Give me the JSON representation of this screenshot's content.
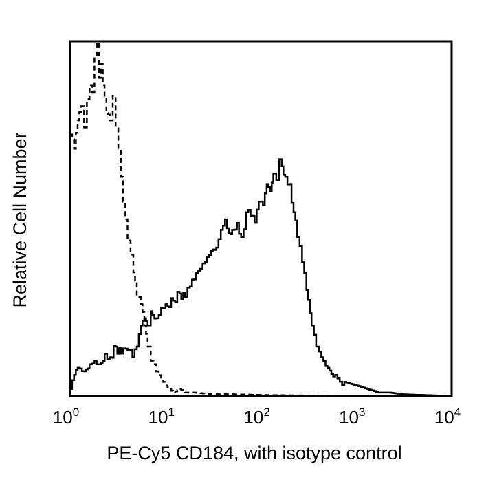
{
  "chart_data": {
    "type": "line",
    "subtype": "flow-cytometry-histogram",
    "title": "",
    "xlabel": "PE-Cy5 CD184, with isotype control",
    "ylabel": "Relative Cell Number",
    "xscale": "log",
    "xlim": [
      1,
      10000
    ],
    "ylim": [
      0,
      100
    ],
    "x_ticks": [
      {
        "base": "10",
        "exp": "0",
        "value": 1
      },
      {
        "base": "10",
        "exp": "1",
        "value": 10
      },
      {
        "base": "10",
        "exp": "2",
        "value": 100
      },
      {
        "base": "10",
        "exp": "3",
        "value": 1000
      },
      {
        "base": "10",
        "exp": "4",
        "value": 10000
      }
    ],
    "grid": false,
    "legend": null,
    "series": [
      {
        "name": "Isotype control",
        "style": "dashed",
        "color": "#000000",
        "x": [
          1.0,
          1.1,
          1.2,
          1.3,
          1.4,
          1.5,
          1.6,
          1.7,
          1.8,
          1.9,
          2.0,
          2.1,
          2.2,
          2.4,
          2.6,
          2.8,
          3.0,
          3.2,
          3.4,
          3.6,
          3.8,
          4.0,
          4.3,
          4.6,
          5.0,
          5.5,
          6.0,
          6.5,
          7.0,
          7.5,
          8.0,
          9.0,
          10.0,
          11.0,
          12.0,
          14.0,
          16.0,
          20.0,
          30.0,
          50.0,
          100.0,
          200.0,
          1000.0,
          10000.0
        ],
        "y": [
          74,
          70,
          78,
          82,
          76,
          84,
          88,
          86,
          96,
          100,
          90,
          94,
          88,
          80,
          78,
          85,
          76,
          70,
          62,
          55,
          50,
          44,
          40,
          35,
          28,
          26,
          20,
          14,
          10,
          9,
          7,
          5,
          3,
          2,
          1,
          2,
          1,
          1,
          0.5,
          0.5,
          0.3,
          0.2,
          0,
          0
        ]
      },
      {
        "name": "PE-Cy5 CD184",
        "style": "solid",
        "color": "#000000",
        "x": [
          1.0,
          1.1,
          1.2,
          1.4,
          1.6,
          1.8,
          2.0,
          2.3,
          2.6,
          3.0,
          3.4,
          4.0,
          4.5,
          5.0,
          5.5,
          6.0,
          6.5,
          7.0,
          8.0,
          9.0,
          10.0,
          12.0,
          14.0,
          16.0,
          18.0,
          20.0,
          23.0,
          26.0,
          30.0,
          34.0,
          38.0,
          42.0,
          46.0,
          50.0,
          56.0,
          62.0,
          70.0,
          78.0,
          86.0,
          95.0,
          105.0,
          115.0,
          125.0,
          135.0,
          145.0,
          155.0,
          165.0,
          180.0,
          200.0,
          220.0,
          240.0,
          270.0,
          300.0,
          340.0,
          380.0,
          430.0,
          500.0,
          600.0,
          750.0,
          1000.0,
          1300.0,
          1700.0,
          2200.0,
          3000.0,
          10000.0
        ],
        "y": [
          2,
          6,
          8,
          7,
          9,
          10,
          9,
          12,
          11,
          14,
          12,
          13,
          11,
          14,
          20,
          22,
          20,
          24,
          22,
          25,
          26,
          27,
          29,
          28,
          31,
          33,
          36,
          38,
          41,
          42,
          47,
          50,
          46,
          47,
          49,
          45,
          52,
          51,
          49,
          55,
          54,
          60,
          58,
          63,
          61,
          67,
          65,
          62,
          60,
          52,
          45,
          38,
          30,
          20,
          14,
          11,
          8,
          6,
          4,
          3,
          2,
          1,
          1,
          0.5,
          0
        ]
      }
    ],
    "annotations": []
  }
}
